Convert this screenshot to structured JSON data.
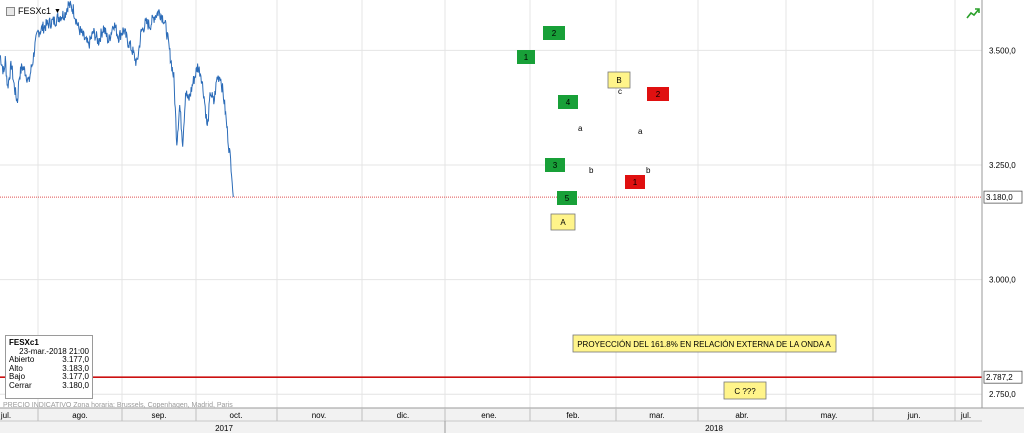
{
  "symbol": {
    "name": "FESXc1",
    "dropdown_icon": "caret-down-icon",
    "chart_icon": "chart-type-icon"
  },
  "header_icon": "trend-arrow-icon",
  "ohlc": {
    "title": "FESXc1",
    "datetime": "23-mar.-2018 21:00",
    "rows": [
      {
        "label": "Abierto",
        "value": "3.177,0"
      },
      {
        "label": "Alto",
        "value": "3.183,0"
      },
      {
        "label": "Bajo",
        "value": "3.177,0"
      },
      {
        "label": "Cerrar",
        "value": "3.180,0"
      }
    ]
  },
  "footer_note": "PRECIO INDICATIVO  Zona horaria: Brussels, Copenhagen, Madrid, Paris",
  "colors": {
    "line": "#2c6cb8",
    "last_price_line": "#e05050",
    "target_line": "#cc1111",
    "green_label": "#18a038",
    "red_label": "#e01010",
    "yellow_label": "#fff48a"
  },
  "chart_data": {
    "type": "line",
    "series": [
      {
        "values": []
      }
    ],
    "x_months": [
      "jul.",
      "ago.",
      "sep.",
      "oct.",
      "nov.",
      "dic.",
      "ene.",
      "feb.",
      "mar.",
      "abr.",
      "may.",
      "jun.",
      "jul."
    ],
    "x_years": [
      "2017",
      "2018"
    ],
    "y_ticks": [
      "3.500,0",
      "3.250,0",
      "3.000,0",
      "2.750,0"
    ],
    "y_tick_values": [
      3500,
      3250,
      3000,
      2750
    ],
    "ylim": [
      2720,
      3610
    ],
    "last_price": {
      "label": "3.180,0",
      "value": 3180
    },
    "target_price": {
      "label": "2.787,2",
      "value": 2787.2
    },
    "approx_path": [
      {
        "t": 0,
        "v": 3490
      },
      {
        "t": 0.05,
        "v": 3470
      },
      {
        "t": 0.1,
        "v": 3450
      },
      {
        "t": 0.14,
        "v": 3480
      },
      {
        "t": 0.2,
        "v": 3420
      },
      {
        "t": 0.24,
        "v": 3440
      },
      {
        "t": 0.3,
        "v": 3470
      },
      {
        "t": 0.36,
        "v": 3430
      },
      {
        "t": 0.42,
        "v": 3400
      },
      {
        "t": 0.46,
        "v": 3390
      },
      {
        "t": 0.5,
        "v": 3440
      },
      {
        "t": 0.58,
        "v": 3465
      },
      {
        "t": 0.66,
        "v": 3455
      },
      {
        "t": 0.76,
        "v": 3430
      },
      {
        "t": 0.82,
        "v": 3460
      },
      {
        "t": 0.86,
        "v": 3475
      },
      {
        "t": 0.92,
        "v": 3510
      },
      {
        "t": 1.0,
        "v": 3540
      },
      {
        "t": 1.06,
        "v": 3550
      },
      {
        "t": 1.14,
        "v": 3560
      },
      {
        "t": 1.2,
        "v": 3565
      },
      {
        "t": 1.26,
        "v": 3575
      },
      {
        "t": 1.32,
        "v": 3580
      },
      {
        "t": 1.36,
        "v": 3600
      },
      {
        "t": 1.42,
        "v": 3590
      },
      {
        "t": 1.48,
        "v": 3550
      },
      {
        "t": 1.54,
        "v": 3530
      },
      {
        "t": 1.6,
        "v": 3510
      },
      {
        "t": 1.66,
        "v": 3540
      },
      {
        "t": 1.72,
        "v": 3520
      },
      {
        "t": 1.78,
        "v": 3550
      },
      {
        "t": 1.84,
        "v": 3520
      },
      {
        "t": 1.9,
        "v": 3560
      },
      {
        "t": 1.96,
        "v": 3530
      },
      {
        "t": 2.02,
        "v": 3545
      },
      {
        "t": 2.08,
        "v": 3520
      },
      {
        "t": 2.14,
        "v": 3500
      },
      {
        "t": 2.2,
        "v": 3470
      },
      {
        "t": 2.26,
        "v": 3540
      },
      {
        "t": 2.32,
        "v": 3560
      },
      {
        "t": 2.38,
        "v": 3555
      },
      {
        "t": 2.44,
        "v": 3575
      },
      {
        "t": 2.5,
        "v": 3585
      },
      {
        "t": 2.56,
        "v": 3570
      },
      {
        "t": 2.6,
        "v": 3545
      },
      {
        "t": 2.64,
        "v": 3500
      },
      {
        "t": 2.7,
        "v": 3440
      },
      {
        "t": 2.74,
        "v": 3300
      },
      {
        "t": 2.78,
        "v": 3380
      },
      {
        "t": 2.82,
        "v": 3300
      },
      {
        "t": 2.86,
        "v": 3410
      },
      {
        "t": 2.9,
        "v": 3390
      },
      {
        "t": 2.96,
        "v": 3430
      },
      {
        "t": 3.02,
        "v": 3465
      },
      {
        "t": 3.06,
        "v": 3450
      },
      {
        "t": 3.1,
        "v": 3400
      },
      {
        "t": 3.14,
        "v": 3330
      },
      {
        "t": 3.18,
        "v": 3410
      },
      {
        "t": 3.22,
        "v": 3385
      },
      {
        "t": 3.26,
        "v": 3440
      },
      {
        "t": 3.3,
        "v": 3445
      },
      {
        "t": 3.34,
        "v": 3400
      },
      {
        "t": 3.36,
        "v": 3370
      },
      {
        "t": 3.4,
        "v": 3300
      },
      {
        "t": 3.44,
        "v": 3240
      },
      {
        "t": 3.46,
        "v": 3180
      }
    ]
  },
  "annotations": [
    {
      "text": "2",
      "color": "green"
    },
    {
      "text": "1",
      "color": "green"
    },
    {
      "text": "4",
      "color": "green"
    },
    {
      "text": "3",
      "color": "green"
    },
    {
      "text": "5",
      "color": "green"
    },
    {
      "text": "A",
      "color": "yellow"
    },
    {
      "text": "B",
      "color": "yellow"
    },
    {
      "text": "2",
      "color": "red"
    },
    {
      "text": "1",
      "color": "red"
    }
  ],
  "small_letters": [
    {
      "text": "b"
    },
    {
      "text": "a"
    },
    {
      "text": "c"
    },
    {
      "text": "a"
    },
    {
      "text": "b"
    }
  ],
  "projection_text": "PROYECCIÓN DEL 161.8% EN RELACIÓN EXTERNA DE LA ONDA A",
  "c_label": "C ???"
}
